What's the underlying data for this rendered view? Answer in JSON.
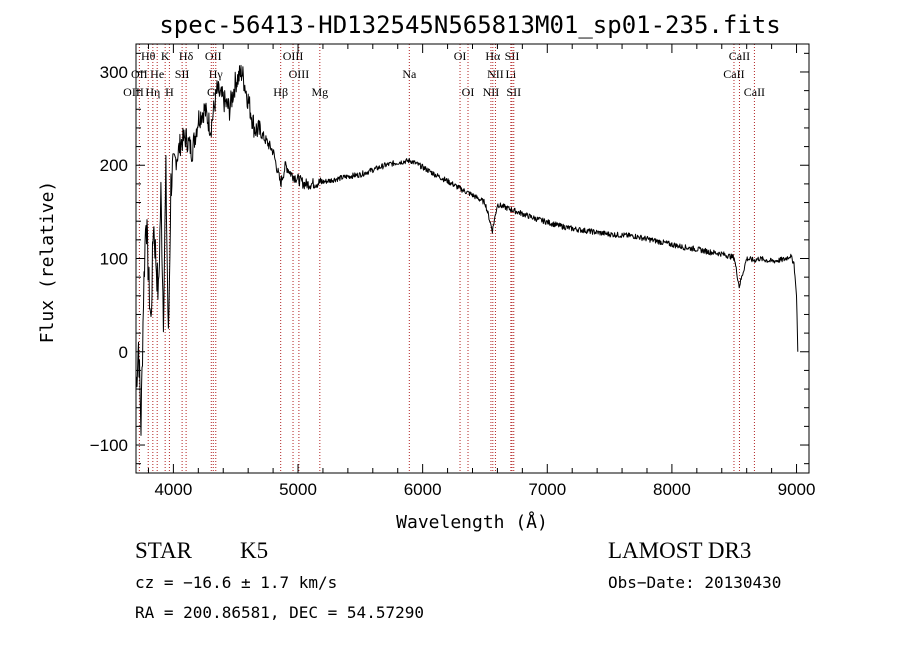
{
  "chart_data": {
    "type": "line",
    "title": "spec-56413-HD132545N565813M01_sp01-235.fits",
    "xlabel": "Wavelength (Å)",
    "ylabel": "Flux (relative)",
    "xlim": [
      3700,
      9100
    ],
    "ylim": [
      -130,
      330
    ],
    "xticks": [
      4000,
      5000,
      6000,
      7000,
      8000,
      9000
    ],
    "yticks": [
      -100,
      0,
      100,
      200,
      300
    ],
    "grid": false,
    "series": [
      {
        "name": "spectrum",
        "x": [
          3700,
          3720,
          3740,
          3760,
          3780,
          3800,
          3820,
          3840,
          3860,
          3880,
          3900,
          3920,
          3940,
          3960,
          3980,
          4000,
          4030,
          4060,
          4100,
          4150,
          4200,
          4250,
          4300,
          4350,
          4400,
          4450,
          4500,
          4550,
          4600,
          4650,
          4700,
          4750,
          4800,
          4860,
          4900,
          4950,
          5000,
          5050,
          5100,
          5200,
          5300,
          5400,
          5500,
          5600,
          5700,
          5800,
          5900,
          6000,
          6100,
          6200,
          6300,
          6400,
          6500,
          6560,
          6600,
          6700,
          6800,
          6900,
          7000,
          7100,
          7200,
          7300,
          7400,
          7500,
          7600,
          7700,
          7800,
          7900,
          8000,
          8100,
          8200,
          8300,
          8400,
          8500,
          8540,
          8600,
          8662,
          8700,
          8800,
          8900,
          8950,
          8980,
          9000,
          9010
        ],
        "values": [
          -40,
          10,
          -80,
          60,
          150,
          80,
          30,
          140,
          100,
          60,
          170,
          40,
          190,
          10,
          180,
          200,
          210,
          225,
          230,
          215,
          250,
          260,
          240,
          280,
          270,
          260,
          290,
          300,
          270,
          240,
          235,
          225,
          215,
          180,
          200,
          190,
          185,
          180,
          180,
          182,
          185,
          188,
          190,
          195,
          200,
          203,
          205,
          198,
          190,
          183,
          175,
          168,
          160,
          130,
          158,
          153,
          148,
          143,
          139,
          135,
          132,
          130,
          128,
          126,
          125,
          124,
          121,
          118,
          115,
          112,
          110,
          107,
          105,
          101,
          70,
          100,
          98,
          100,
          97,
          99,
          103,
          95,
          60,
          0
        ]
      }
    ],
    "line_markers": [
      {
        "label": "Hθ",
        "x": 3798,
        "row": 1
      },
      {
        "label": "K",
        "x": 3934,
        "row": 1
      },
      {
        "label": "Hδ",
        "x": 4102,
        "row": 1
      },
      {
        "label": "OII",
        "x": 4320,
        "row": 1
      },
      {
        "label": "OIII",
        "x": 4960,
        "row": 1
      },
      {
        "label": "OI",
        "x": 6300,
        "row": 1
      },
      {
        "label": "Hα",
        "x": 6563,
        "row": 1
      },
      {
        "label": "SII",
        "x": 6717,
        "row": 1
      },
      {
        "label": "CaII",
        "x": 8542,
        "row": 1
      },
      {
        "label": "OII",
        "x": 3727,
        "row": 2
      },
      {
        "label": "He",
        "x": 3870,
        "row": 2
      },
      {
        "label": "SII",
        "x": 4070,
        "row": 2
      },
      {
        "label": "Hγ",
        "x": 4340,
        "row": 2
      },
      {
        "label": "OIII",
        "x": 5007,
        "row": 2
      },
      {
        "label": "Na",
        "x": 5893,
        "row": 2
      },
      {
        "label": "NII",
        "x": 6584,
        "row": 2
      },
      {
        "label": "Li",
        "x": 6708,
        "row": 2
      },
      {
        "label": "CaII",
        "x": 8498,
        "row": 2
      },
      {
        "label": "OIII",
        "x": 3680,
        "row": 3
      },
      {
        "label": "Hη",
        "x": 3835,
        "row": 3
      },
      {
        "label": "H",
        "x": 3968,
        "row": 3
      },
      {
        "label": "G",
        "x": 4304,
        "row": 3
      },
      {
        "label": "Hβ",
        "x": 4861,
        "row": 3
      },
      {
        "label": "Mg",
        "x": 5175,
        "row": 3
      },
      {
        "label": "OI",
        "x": 6364,
        "row": 3
      },
      {
        "label": "NII",
        "x": 6548,
        "row": 3
      },
      {
        "label": "SII",
        "x": 6731,
        "row": 3
      },
      {
        "label": "CaII",
        "x": 8662,
        "row": 3
      }
    ]
  },
  "info": {
    "object_class": "STAR",
    "subclass": "K5",
    "survey": "LAMOST DR3",
    "cz": "cz = −16.6 ± 1.7 km/s",
    "obs_date": "Obs−Date: 20130430",
    "radec": "RA = 200.86581, DEC =  54.57290"
  },
  "colors": {
    "spectrum": "#000000",
    "line_marker": "#b22222",
    "background": "#ffffff"
  }
}
